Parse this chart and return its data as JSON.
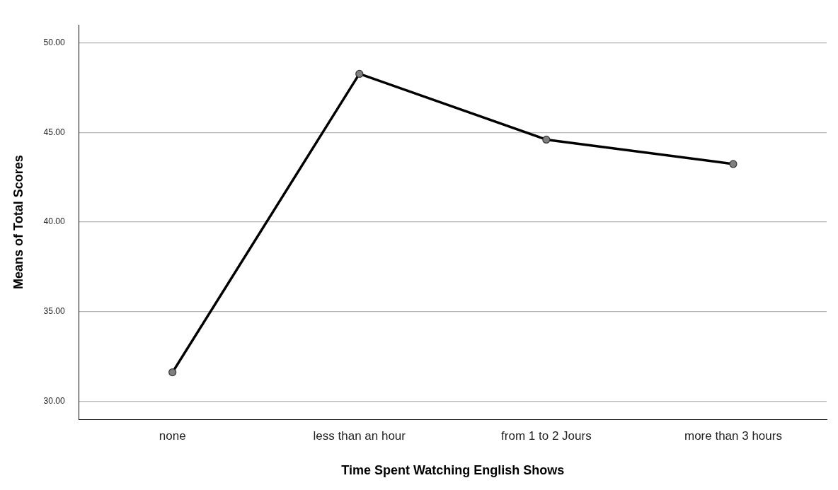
{
  "chart_data": {
    "type": "line",
    "xlabel": "Time Spent Watching English Shows",
    "ylabel": "Means of Total Scores",
    "categories": [
      "none",
      "less than an hour",
      "from 1 to 2 Jours",
      "more than 3 hours"
    ],
    "series": [
      {
        "color": "#000000",
        "values": [
          31.62,
          48.27,
          44.6,
          43.24
        ]
      }
    ],
    "ylim": [
      29,
      51
    ],
    "yticks": [
      {
        "value": 30,
        "label": "30.00"
      },
      {
        "value": 35,
        "label": "35.00"
      },
      {
        "value": 40,
        "label": "40.00"
      },
      {
        "value": 45,
        "label": "45.00"
      },
      {
        "value": 50,
        "label": "50.00"
      }
    ],
    "grid": "y",
    "legend": false,
    "marker": "circle",
    "line_style": "solid"
  }
}
